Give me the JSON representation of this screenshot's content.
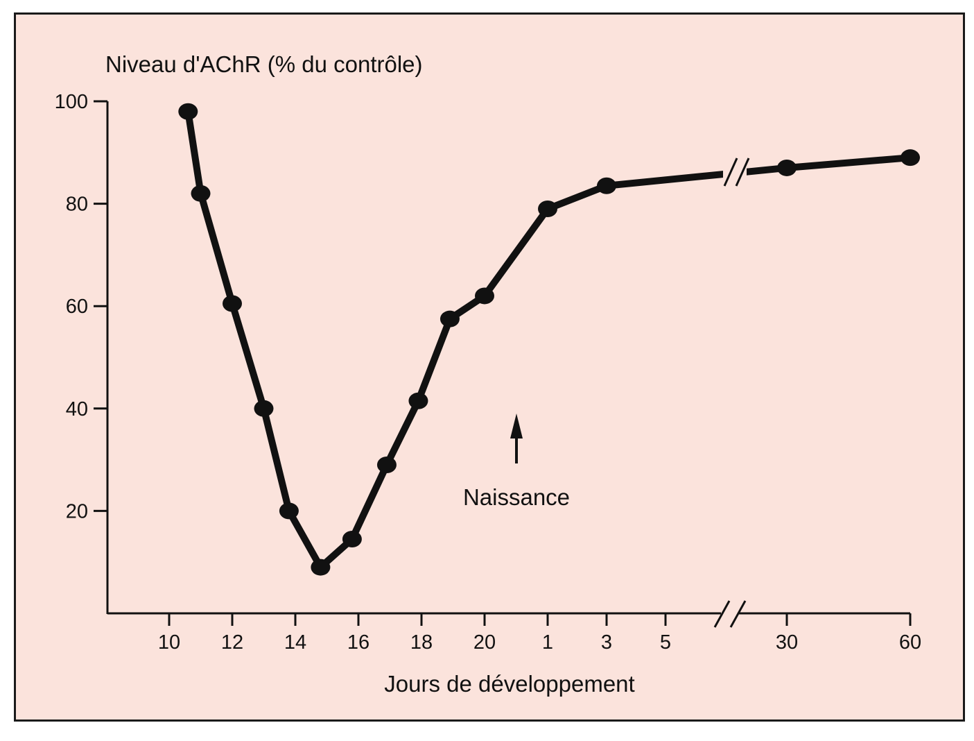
{
  "colors": {
    "background": "#fbe3dc",
    "ink": "#111111",
    "frame": "#1a1a1a"
  },
  "chart_data": {
    "type": "line",
    "title": "",
    "ylabel": "Niveau d'AChR (% du contrôle)",
    "xlabel": "Jours de développement",
    "ylim": [
      0,
      100
    ],
    "yticks": [
      "20",
      "40",
      "60",
      "80",
      "100"
    ],
    "xticks": [
      "10",
      "12",
      "14",
      "16",
      "18",
      "20",
      "1",
      "3",
      "5",
      "30",
      "60"
    ],
    "axis_break": true,
    "grid": false,
    "legend": "none",
    "series": [
      {
        "points": [
          {
            "x": "10.6",
            "y": 98
          },
          {
            "x": "11",
            "y": 82
          },
          {
            "x": "12",
            "y": 60.5
          },
          {
            "x": "13",
            "y": 40
          },
          {
            "x": "13.8",
            "y": 20
          },
          {
            "x": "14.8",
            "y": 9
          },
          {
            "x": "15.8",
            "y": 14.5
          },
          {
            "x": "16.9",
            "y": 29
          },
          {
            "x": "17.9",
            "y": 41.5
          },
          {
            "x": "18.9",
            "y": 57.5
          },
          {
            "x": "20",
            "y": 62
          },
          {
            "x": "1",
            "y": 79
          },
          {
            "x": "3",
            "y": 83.5
          },
          {
            "x": "30",
            "y": 87
          },
          {
            "x": "60",
            "y": 89
          }
        ]
      }
    ],
    "annotations": [
      {
        "text": "Naissance",
        "at_x": "21 (entre 20 et 1)",
        "arrow": "up"
      }
    ]
  }
}
